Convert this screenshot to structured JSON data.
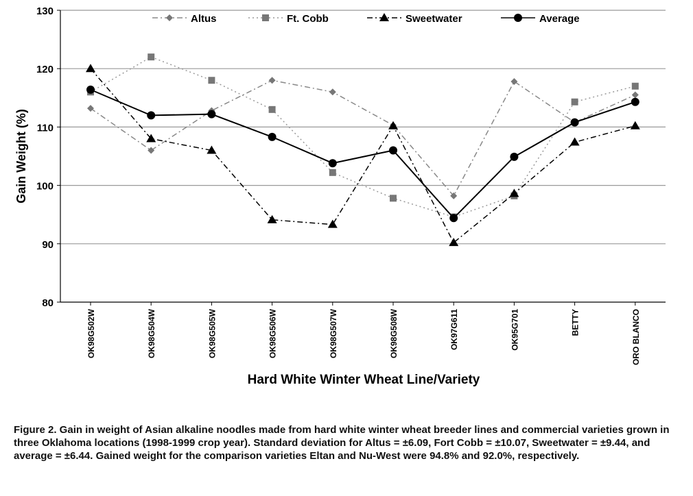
{
  "chart_data": {
    "type": "line",
    "xlabel": "Hard White Winter Wheat Line/Variety",
    "ylabel": "Gain Weight (%)",
    "ylim": [
      80,
      130
    ],
    "yticks": [
      "80",
      "90",
      "100",
      "110",
      "120",
      "130"
    ],
    "grid": true,
    "legend_position": "top",
    "categories": [
      "OK98G502W",
      "OK98G504W",
      "OK98G505W",
      "OK98G506W",
      "OK98G507W",
      "OK98G508W",
      "OK97G611",
      "OK95G701",
      "BETTY",
      "ORO BLANCO"
    ],
    "series": [
      {
        "name": "Altus",
        "marker": "diamond",
        "dash": "dashdot",
        "color": "#888888",
        "values": [
          113.2,
          106.0,
          112.8,
          118.0,
          116.0,
          110.3,
          98.2,
          117.8,
          110.8,
          115.5
        ]
      },
      {
        "name": "Ft. Cobb",
        "marker": "square",
        "dash": "dotted",
        "color": "#999999",
        "values": [
          116.0,
          122.0,
          118.0,
          113.0,
          102.2,
          97.8,
          94.6,
          98.2,
          114.3,
          117.0
        ]
      },
      {
        "name": "Sweetwater",
        "marker": "triangle",
        "dash": "dashdot",
        "color": "#000000",
        "values": [
          120.0,
          108.0,
          106.0,
          94.1,
          93.3,
          110.2,
          90.2,
          98.6,
          107.4,
          110.2
        ]
      },
      {
        "name": "Average",
        "marker": "circle",
        "dash": "solid",
        "color": "#000000",
        "values": [
          116.4,
          112.0,
          112.2,
          108.3,
          103.8,
          106.0,
          94.4,
          104.9,
          110.8,
          114.3
        ]
      }
    ]
  },
  "caption": "Figure 2.  Gain in weight of Asian alkaline noodles made from hard white winter wheat breeder lines and commercial varieties grown in three Oklahoma locations (1998-1999 crop year).  Standard deviation for Altus = ±6.09, Fort Cobb = ±10.07, Sweetwater = ±9.44, and average = ±6.44.  Gained weight for the comparison varieties Eltan and Nu-West were 94.8% and 92.0%, respectively."
}
